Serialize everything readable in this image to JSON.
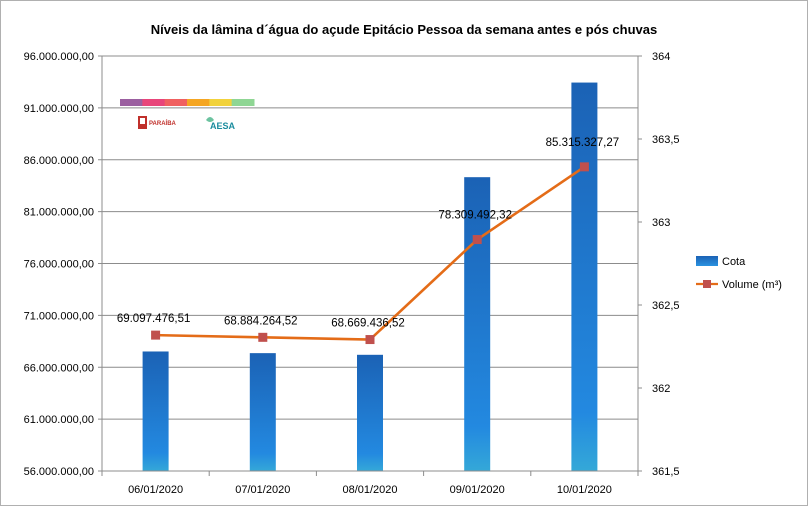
{
  "chart_data": {
    "type": "bar",
    "title": "Níveis da lâmina d´água do açude Epitácio Pessoa da semana antes e pós chuvas",
    "categories": [
      "06/01/2020",
      "07/01/2020",
      "08/01/2020",
      "09/01/2020",
      "10/01/2020"
    ],
    "series": [
      {
        "name": "Cota",
        "type": "bar",
        "axis": "right",
        "values": [
          362.22,
          362.21,
          362.2,
          363.27,
          363.84
        ],
        "color": "#1a72c8"
      },
      {
        "name": "Volume (m³)",
        "type": "line",
        "axis": "left",
        "values": [
          69097476.51,
          68884264.52,
          68669436.52,
          78309492.32,
          85315327.27
        ],
        "labels": [
          "69.097.476,51",
          "68.884.264,52",
          "68.669.436,52",
          "78.309.492,32",
          "85.315.327,27"
        ],
        "color": "#e46c18",
        "marker_color": "#c0504d"
      }
    ],
    "left_axis": {
      "ylim": [
        56000000,
        96000000
      ],
      "ticks": [
        56000000,
        61000000,
        66000000,
        71000000,
        76000000,
        81000000,
        86000000,
        91000000,
        96000000
      ],
      "tick_labels": [
        "56.000.000,00",
        "61.000.000,00",
        "66.000.000,00",
        "71.000.000,00",
        "76.000.000,00",
        "81.000.000,00",
        "86.000.000,00",
        "91.000.000,00",
        "96.000.000,00"
      ]
    },
    "right_axis": {
      "ylim": [
        361.5,
        364
      ],
      "ticks": [
        361.5,
        362,
        362.5,
        363,
        363.5,
        364
      ],
      "tick_labels": [
        "361,5",
        "362",
        "362,5",
        "363",
        "363,5",
        "364"
      ]
    },
    "grid": true,
    "legend": "right"
  },
  "logos": {
    "state": "PARAÍBA",
    "agency": "AESA",
    "stripe_colors": [
      "#9b5fa0",
      "#e8457a",
      "#f06060",
      "#f5a623",
      "#f2d23c",
      "#8fd694"
    ]
  }
}
